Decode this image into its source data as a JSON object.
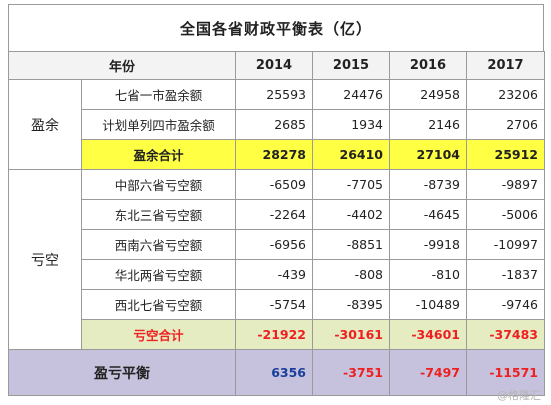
{
  "title": "全国各省财政平衡表（亿）",
  "header": {
    "year_label": "年份",
    "years": [
      "2014",
      "2015",
      "2016",
      "2017"
    ]
  },
  "surplus": {
    "category": "盈余",
    "rows": [
      {
        "label": "七省一市盈余额",
        "values": [
          "25593",
          "24476",
          "24958",
          "23206"
        ]
      },
      {
        "label": "计划单列四市盈余额",
        "values": [
          "2685",
          "1934",
          "2146",
          "2706"
        ]
      }
    ],
    "subtotal": {
      "label": "盈余合计",
      "values": [
        "28278",
        "26410",
        "27104",
        "25912"
      ]
    }
  },
  "deficit": {
    "category": "亏空",
    "rows": [
      {
        "label": "中部六省亏空额",
        "values": [
          "-6509",
          "-7705",
          "-8739",
          "-9897"
        ]
      },
      {
        "label": "东北三省亏空额",
        "values": [
          "-2264",
          "-4402",
          "-4645",
          "-5006"
        ]
      },
      {
        "label": "西南六省亏空额",
        "values": [
          "-6956",
          "-8851",
          "-9918",
          "-10997"
        ]
      },
      {
        "label": "华北两省亏空额",
        "values": [
          "-439",
          "-808",
          "-810",
          "-1837"
        ]
      },
      {
        "label": "西北七省亏空额",
        "values": [
          "-5754",
          "-8395",
          "-10489",
          "-9746"
        ]
      }
    ],
    "subtotal": {
      "label": "亏空合计",
      "values": [
        "-21922",
        "-30161",
        "-34601",
        "-37483"
      ]
    }
  },
  "balance": {
    "label": "盈亏平衡",
    "values": [
      "6356",
      "-3751",
      "-7497",
      "-11571"
    ]
  },
  "watermark": "@格隆汇",
  "colors": {
    "surplus_subtotal_bg": "#ffff44",
    "deficit_subtotal_bg": "#e6ecc2",
    "balance_bg": "#c6c2de",
    "negative_text": "#ee2020",
    "positive_balance_text": "#1a3f9a"
  }
}
